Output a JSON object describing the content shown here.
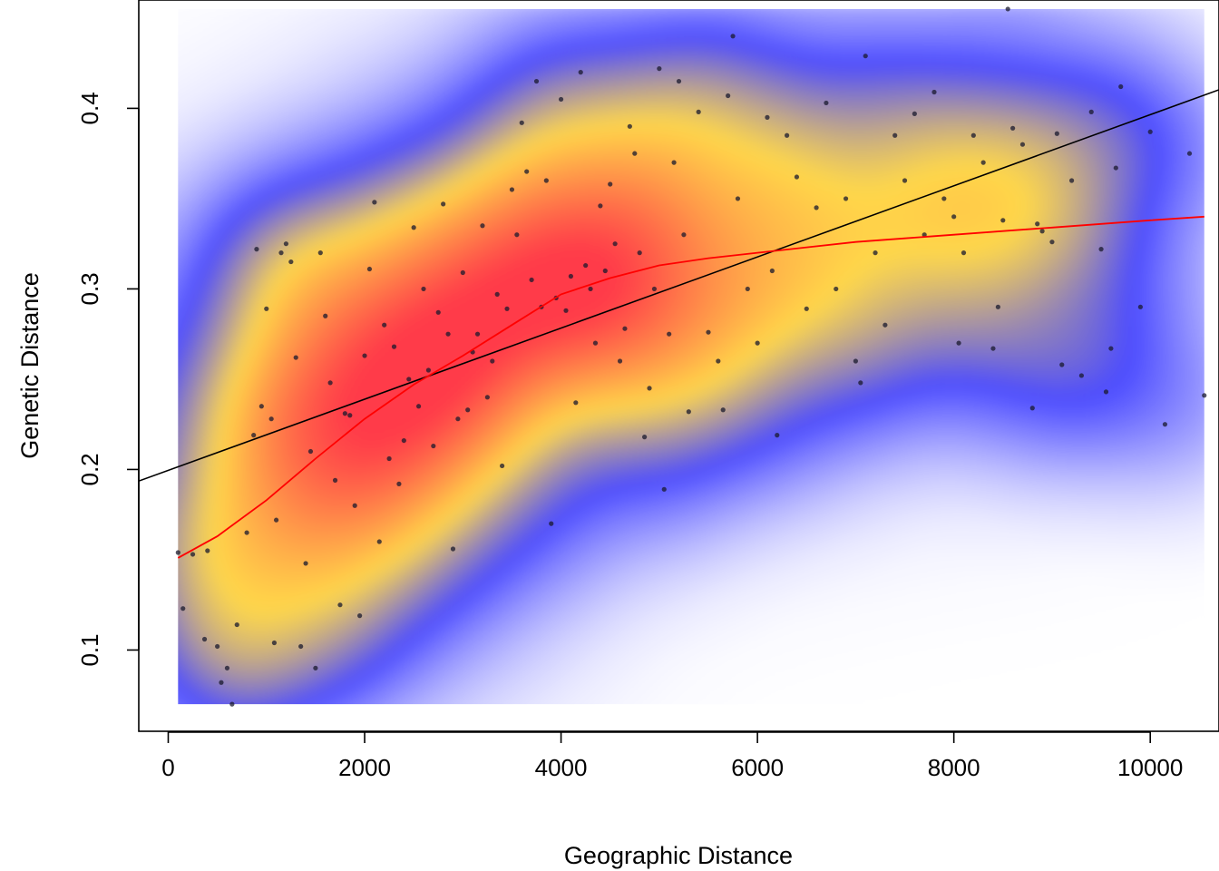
{
  "chart_data": {
    "type": "scatter",
    "title": "",
    "xlabel": "Geographic Distance",
    "ylabel": "Genetic Distance",
    "xlim": [
      -300,
      10700
    ],
    "ylim": [
      0.055,
      0.46
    ],
    "x_ticks": [
      0,
      2000,
      4000,
      6000,
      8000,
      10000
    ],
    "y_ticks": [
      0.1,
      0.2,
      0.3,
      0.4
    ],
    "grid": false,
    "legend": "none",
    "density_extent": {
      "x": [
        100,
        10550
      ],
      "y": [
        0.07,
        0.455
      ]
    },
    "density_colors": [
      "#ffffff",
      "#4b4bff",
      "#ffd84a",
      "#ff3a4a"
    ],
    "point_color": "#1a1a2e",
    "regression_line": {
      "color": "#000000",
      "intercept": 0.1995,
      "slope": 1.97e-05
    },
    "smooth_curve": {
      "color": "#ff0000",
      "x": [
        100,
        500,
        1000,
        1500,
        2000,
        2500,
        3000,
        3500,
        4000,
        4500,
        5000,
        5500,
        6000,
        6500,
        7000,
        7500,
        8000,
        8500,
        9000,
        9500,
        10000,
        10550
      ],
      "y": [
        0.151,
        0.163,
        0.183,
        0.206,
        0.228,
        0.247,
        0.263,
        0.28,
        0.297,
        0.306,
        0.313,
        0.317,
        0.32,
        0.323,
        0.326,
        0.328,
        0.33,
        0.332,
        0.334,
        0.336,
        0.338,
        0.34
      ]
    },
    "density_blobs": [
      {
        "x": 2600,
        "y": 0.265,
        "w": 1.0
      },
      {
        "x": 4400,
        "y": 0.305,
        "w": 0.9
      },
      {
        "x": 1600,
        "y": 0.21,
        "w": 0.7
      },
      {
        "x": 900,
        "y": 0.17,
        "w": 0.55
      },
      {
        "x": 6000,
        "y": 0.315,
        "w": 0.6
      },
      {
        "x": 7800,
        "y": 0.335,
        "w": 0.5
      },
      {
        "x": 3400,
        "y": 0.32,
        "w": 0.5
      },
      {
        "x": 5200,
        "y": 0.345,
        "w": 0.45
      },
      {
        "x": 8900,
        "y": 0.34,
        "w": 0.3
      },
      {
        "x": 1100,
        "y": 0.26,
        "w": 0.35
      },
      {
        "x": 2200,
        "y": 0.18,
        "w": 0.35
      }
    ],
    "points": [
      [
        100,
        0.154
      ],
      [
        250,
        0.153
      ],
      [
        150,
        0.123
      ],
      [
        370,
        0.106
      ],
      [
        400,
        0.155
      ],
      [
        500,
        0.102
      ],
      [
        540,
        0.082
      ],
      [
        600,
        0.09
      ],
      [
        650,
        0.07
      ],
      [
        700,
        0.114
      ],
      [
        800,
        0.165
      ],
      [
        870,
        0.219
      ],
      [
        900,
        0.322
      ],
      [
        950,
        0.235
      ],
      [
        1000,
        0.289
      ],
      [
        1050,
        0.228
      ],
      [
        1080,
        0.104
      ],
      [
        1100,
        0.172
      ],
      [
        1150,
        0.32
      ],
      [
        1200,
        0.325
      ],
      [
        1250,
        0.315
      ],
      [
        1300,
        0.262
      ],
      [
        1350,
        0.102
      ],
      [
        1400,
        0.148
      ],
      [
        1450,
        0.21
      ],
      [
        1500,
        0.09
      ],
      [
        1550,
        0.32
      ],
      [
        1600,
        0.285
      ],
      [
        1650,
        0.248
      ],
      [
        1700,
        0.194
      ],
      [
        1750,
        0.125
      ],
      [
        1800,
        0.231
      ],
      [
        1850,
        0.23
      ],
      [
        1900,
        0.18
      ],
      [
        1950,
        0.119
      ],
      [
        2000,
        0.263
      ],
      [
        2050,
        0.311
      ],
      [
        2100,
        0.348
      ],
      [
        2150,
        0.16
      ],
      [
        2200,
        0.28
      ],
      [
        2250,
        0.206
      ],
      [
        2300,
        0.268
      ],
      [
        2350,
        0.192
      ],
      [
        2400,
        0.216
      ],
      [
        2450,
        0.25
      ],
      [
        2500,
        0.334
      ],
      [
        2550,
        0.235
      ],
      [
        2600,
        0.3
      ],
      [
        2650,
        0.255
      ],
      [
        2700,
        0.213
      ],
      [
        2750,
        0.287
      ],
      [
        2800,
        0.347
      ],
      [
        2850,
        0.275
      ],
      [
        2900,
        0.156
      ],
      [
        2950,
        0.228
      ],
      [
        3000,
        0.309
      ],
      [
        3050,
        0.233
      ],
      [
        3100,
        0.265
      ],
      [
        3150,
        0.275
      ],
      [
        3200,
        0.335
      ],
      [
        3250,
        0.24
      ],
      [
        3300,
        0.26
      ],
      [
        3350,
        0.297
      ],
      [
        3400,
        0.202
      ],
      [
        3450,
        0.289
      ],
      [
        3500,
        0.355
      ],
      [
        3550,
        0.33
      ],
      [
        3600,
        0.392
      ],
      [
        3650,
        0.365
      ],
      [
        3700,
        0.305
      ],
      [
        3750,
        0.415
      ],
      [
        3800,
        0.29
      ],
      [
        3850,
        0.36
      ],
      [
        3900,
        0.17
      ],
      [
        3950,
        0.295
      ],
      [
        4000,
        0.405
      ],
      [
        4050,
        0.288
      ],
      [
        4100,
        0.307
      ],
      [
        4150,
        0.237
      ],
      [
        4200,
        0.42
      ],
      [
        4250,
        0.313
      ],
      [
        4300,
        0.3
      ],
      [
        4350,
        0.27
      ],
      [
        4400,
        0.346
      ],
      [
        4450,
        0.31
      ],
      [
        4500,
        0.358
      ],
      [
        4550,
        0.325
      ],
      [
        4600,
        0.26
      ],
      [
        4650,
        0.278
      ],
      [
        4700,
        0.39
      ],
      [
        4750,
        0.375
      ],
      [
        4800,
        0.32
      ],
      [
        4850,
        0.218
      ],
      [
        4900,
        0.245
      ],
      [
        4950,
        0.3
      ],
      [
        5000,
        0.422
      ],
      [
        5050,
        0.189
      ],
      [
        5100,
        0.275
      ],
      [
        5150,
        0.37
      ],
      [
        5200,
        0.415
      ],
      [
        5250,
        0.33
      ],
      [
        5300,
        0.232
      ],
      [
        5400,
        0.398
      ],
      [
        5500,
        0.276
      ],
      [
        5600,
        0.26
      ],
      [
        5650,
        0.233
      ],
      [
        5700,
        0.407
      ],
      [
        5750,
        0.44
      ],
      [
        5800,
        0.35
      ],
      [
        5900,
        0.3
      ],
      [
        6000,
        0.27
      ],
      [
        6100,
        0.395
      ],
      [
        6150,
        0.31
      ],
      [
        6200,
        0.219
      ],
      [
        6300,
        0.385
      ],
      [
        6400,
        0.362
      ],
      [
        6500,
        0.289
      ],
      [
        6600,
        0.345
      ],
      [
        6700,
        0.403
      ],
      [
        6800,
        0.3
      ],
      [
        6900,
        0.35
      ],
      [
        7000,
        0.26
      ],
      [
        7050,
        0.248
      ],
      [
        7100,
        0.429
      ],
      [
        7200,
        0.32
      ],
      [
        7300,
        0.28
      ],
      [
        7400,
        0.385
      ],
      [
        7500,
        0.36
      ],
      [
        7600,
        0.397
      ],
      [
        7700,
        0.33
      ],
      [
        7800,
        0.409
      ],
      [
        7900,
        0.35
      ],
      [
        8000,
        0.34
      ],
      [
        8050,
        0.27
      ],
      [
        8100,
        0.32
      ],
      [
        8200,
        0.385
      ],
      [
        8300,
        0.37
      ],
      [
        8400,
        0.267
      ],
      [
        8450,
        0.29
      ],
      [
        8500,
        0.338
      ],
      [
        8550,
        0.455
      ],
      [
        8600,
        0.389
      ],
      [
        8700,
        0.38
      ],
      [
        8800,
        0.234
      ],
      [
        8850,
        0.336
      ],
      [
        8900,
        0.332
      ],
      [
        9000,
        0.326
      ],
      [
        9050,
        0.386
      ],
      [
        9100,
        0.258
      ],
      [
        9200,
        0.36
      ],
      [
        9300,
        0.252
      ],
      [
        9400,
        0.398
      ],
      [
        9500,
        0.322
      ],
      [
        9550,
        0.243
      ],
      [
        9600,
        0.267
      ],
      [
        9650,
        0.367
      ],
      [
        9700,
        0.412
      ],
      [
        9900,
        0.29
      ],
      [
        10000,
        0.387
      ],
      [
        10150,
        0.225
      ],
      [
        10400,
        0.375
      ],
      [
        10550,
        0.241
      ]
    ]
  }
}
